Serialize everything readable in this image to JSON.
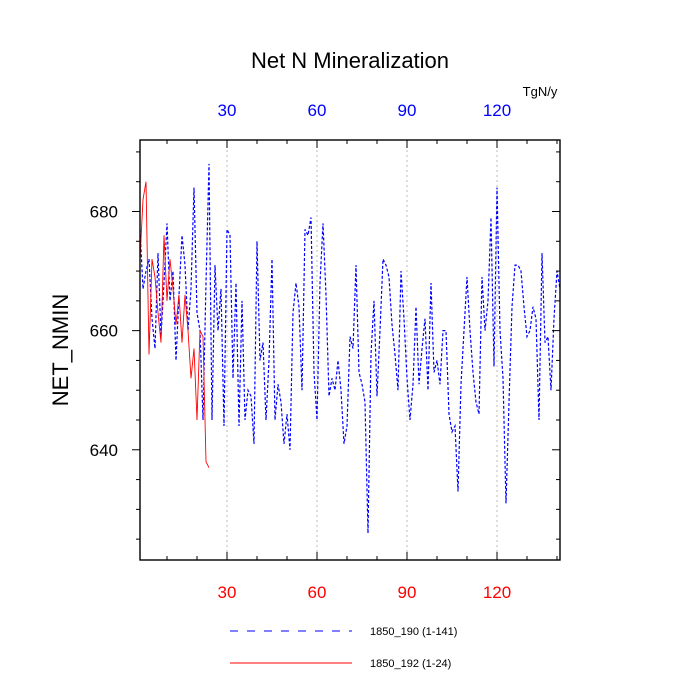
{
  "chart_data": {
    "type": "line",
    "title": "Net N Mineralization",
    "ylabel": "NET_NMIN",
    "units_label": "TgN/y",
    "xlim": [
      1,
      141
    ],
    "ylim": [
      621.5,
      692
    ],
    "y_ticks": [
      640,
      660,
      680
    ],
    "y_tick_labels": [
      "640",
      "660",
      "680"
    ],
    "x_ticks": [
      30,
      60,
      90,
      120
    ],
    "bottom_tick_labels": [
      "30",
      "60",
      "90",
      "120"
    ],
    "top_tick_labels": [
      "30",
      "60",
      "90",
      "120"
    ],
    "bottom_axis_color": "#ff0000",
    "top_axis_color": "#0000ff",
    "series": [
      {
        "name": "1850_190 (1-141)",
        "color": "#0000ff",
        "dash": "dashed",
        "x_start": 1,
        "values": [
          677,
          667,
          670,
          672,
          662,
          657,
          673,
          659,
          668,
          678,
          665,
          670,
          655,
          666,
          676,
          671,
          660,
          667,
          684,
          663,
          660,
          645,
          668,
          688,
          645,
          671,
          660,
          667,
          644,
          677,
          676,
          652,
          668,
          644,
          665,
          645,
          650,
          649,
          641,
          675,
          655,
          658,
          645,
          655,
          672,
          645,
          651,
          648,
          641,
          646,
          640,
          663,
          668,
          664,
          650,
          677,
          676,
          679,
          653,
          645,
          668,
          678,
          666,
          649,
          652,
          650,
          655,
          650,
          641,
          644,
          659,
          657,
          671,
          653,
          651,
          648,
          626,
          656,
          665,
          649,
          660,
          672,
          671,
          669,
          661,
          656,
          650,
          670,
          662,
          652,
          645,
          651,
          664,
          651,
          657,
          662,
          650,
          668,
          653,
          655,
          651,
          660,
          660,
          646,
          643,
          644,
          633,
          651,
          660,
          669,
          660,
          653,
          648,
          646,
          669,
          660,
          665,
          679,
          654,
          684,
          660,
          652,
          631,
          648,
          664,
          671,
          671,
          670,
          664,
          659,
          660,
          664,
          662,
          645,
          673,
          658,
          659,
          650,
          662,
          670,
          667
        ]
      },
      {
        "name": "1850_192 (1-24)",
        "color": "#ff0000",
        "dash": "solid",
        "x_start": 1,
        "values": [
          672,
          682,
          685,
          656,
          672,
          669,
          663,
          658,
          676,
          665,
          672,
          667,
          661,
          666,
          658,
          666,
          660,
          652,
          657,
          645,
          660,
          659,
          638,
          637
        ]
      }
    ]
  }
}
